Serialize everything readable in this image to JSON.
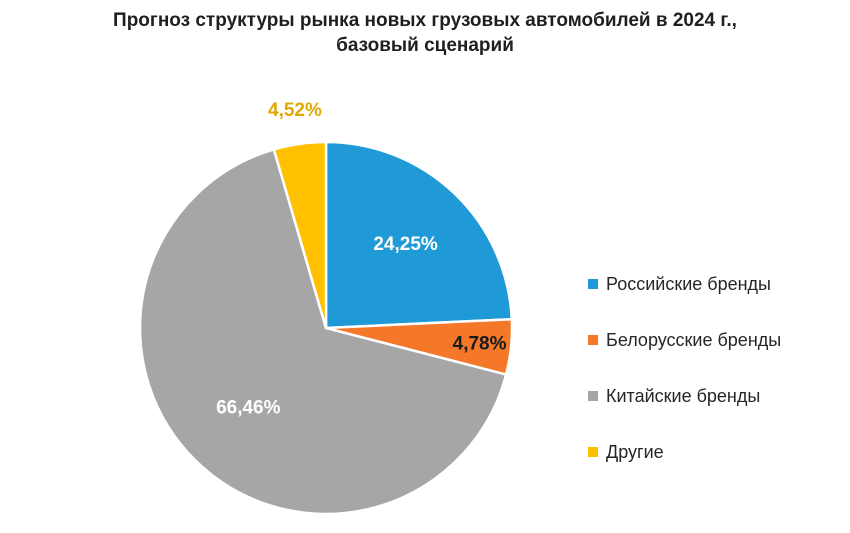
{
  "chart_data": {
    "type": "pie",
    "title_lines": [
      "Прогноз структуры рынка новых грузовых автомобилей в 2024 г.,",
      "базовый сценарий"
    ],
    "slices": [
      {
        "label": "Российские бренды",
        "value": 24.25,
        "data_label": "24,25%",
        "color": "#1f9ad6",
        "label_color": "#ffffff"
      },
      {
        "label": "Белорусские бренды",
        "value": 4.78,
        "data_label": "4,78%",
        "color": "#f5782a",
        "label_color": "#1a1a1a"
      },
      {
        "label": "Китайские бренды",
        "value": 66.46,
        "data_label": "66,46%",
        "color": "#a6a6a6",
        "label_color": "#ffffff"
      },
      {
        "label": "Другие",
        "value": 4.52,
        "data_label": "4,52%",
        "color": "#ffc000",
        "label_color": "#e0a800"
      }
    ],
    "legend_position": "right"
  }
}
